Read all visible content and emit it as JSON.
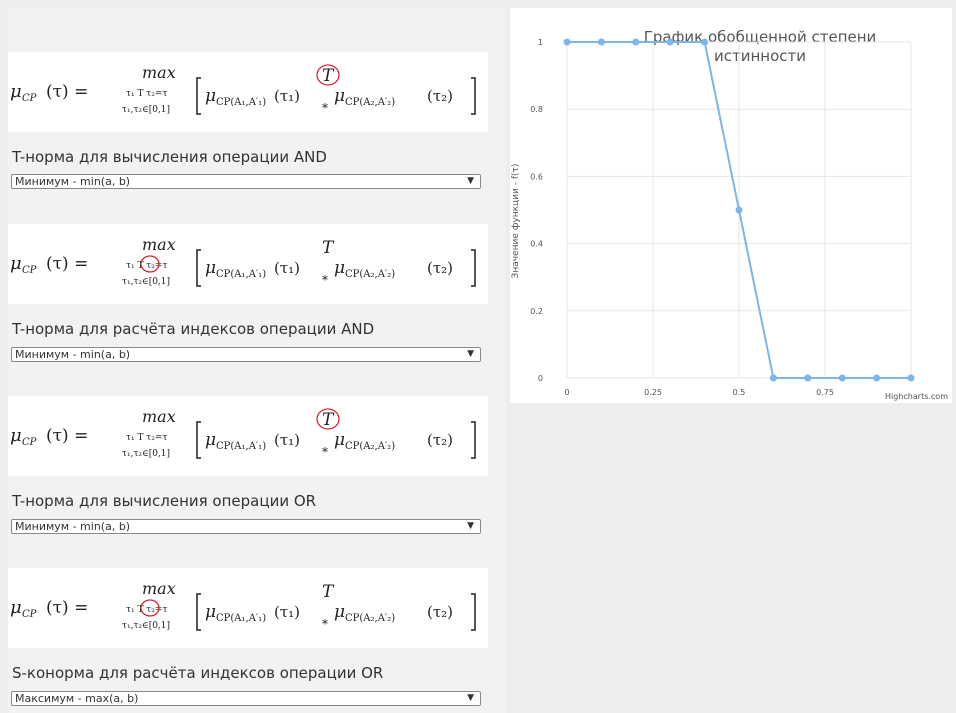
{
  "formula": {
    "lhs": "μ",
    "lhs_sub": "CP",
    "lhs_arg": "(τ) =",
    "max": "max",
    "under1": "τ₁ T τ₂=τ",
    "under2": "τ₁,τ₂∈[0,1]",
    "term1": "μ",
    "term1_sub": "CP(A₁,A′₁)",
    "tau1": "(τ₁)",
    "T": "T",
    "star": "*",
    "term2": "μ",
    "term2_sub": "CP(A₂,A′₂)",
    "tau2": "(τ₂)"
  },
  "sections": [
    {
      "label": "T-норма для вычисления операции AND",
      "select": "Минимум - min(a, b)"
    },
    {
      "label": "T-норма для расчёта индексов операции AND",
      "select": "Минимум - min(a, b)"
    },
    {
      "label": "T-норма для вычисления операции OR",
      "select": "Минимум - min(a, b)"
    },
    {
      "label": "S-конорма для расчёта индексов операции OR",
      "select": "Максимум - max(a, b)"
    }
  ],
  "chart": {
    "title_line1": "График обобщенной степени",
    "title_line2": "истинности",
    "ylabel": "Значение функции - f(τ)",
    "credit": "Highcharts.com",
    "line_color": "#7cb5ec"
  },
  "chart_data": {
    "type": "line",
    "x": [
      0,
      0.1,
      0.2,
      0.3,
      0.4,
      0.5,
      0.6,
      0.7,
      0.8,
      0.9,
      1.0
    ],
    "values": [
      1,
      1,
      1,
      1,
      1,
      0.5,
      0,
      0,
      0,
      0,
      0
    ],
    "xticks": [
      "0",
      "0.25",
      "0.5",
      "0.75"
    ],
    "yticks": [
      "0",
      "0.2",
      "0.4",
      "0.6",
      "0.8",
      "1"
    ],
    "xlim": [
      0,
      1
    ],
    "ylim": [
      0,
      1
    ],
    "grid": true,
    "legend": "none"
  }
}
